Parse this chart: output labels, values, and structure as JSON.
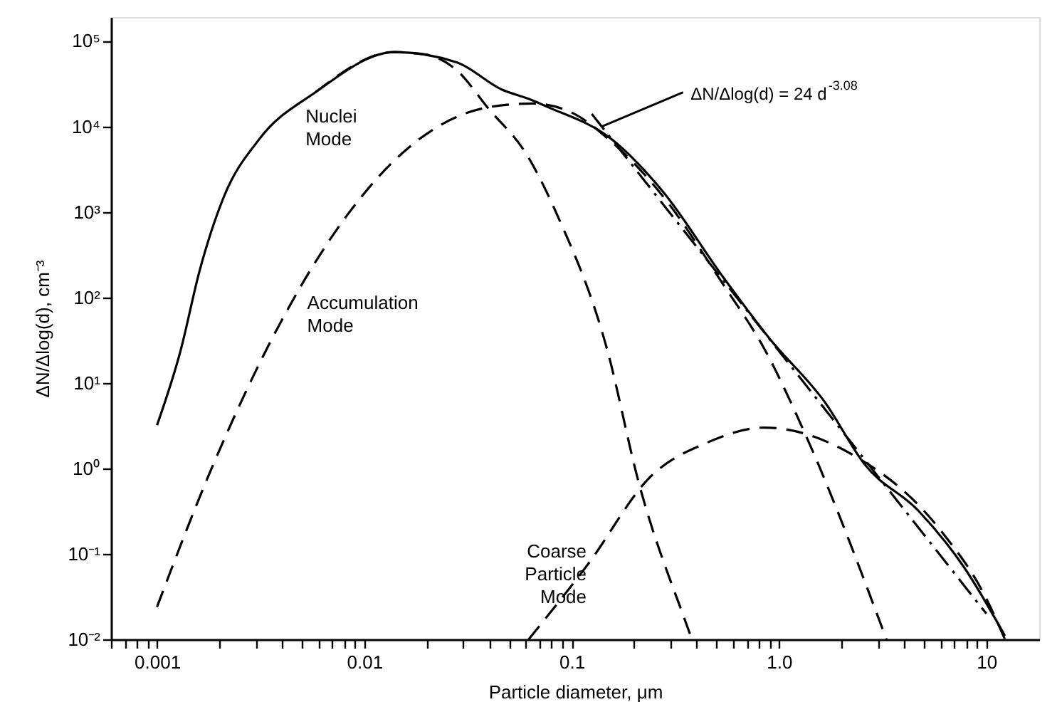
{
  "chart_data": {
    "type": "line",
    "xlabel": "Particle diameter, μm",
    "ylabel": "ΔN/Δlog(d), cm⁻³",
    "log": "xy",
    "grid": false,
    "xlim": [
      0.0006,
      18
    ],
    "ylim": [
      0.01,
      190000
    ],
    "xticks": [
      {
        "value": 0.0006,
        "label": null
      },
      {
        "value": 0.0007,
        "label": null
      },
      {
        "value": 0.0008,
        "label": null
      },
      {
        "value": 0.0009,
        "label": null
      },
      0.001,
      {
        "value": 0.002,
        "label": null
      },
      {
        "value": 0.003,
        "label": null
      },
      {
        "value": 0.004,
        "label": null
      },
      {
        "value": 0.005,
        "label": null
      },
      {
        "value": 0.006,
        "label": null
      },
      {
        "value": 0.007,
        "label": null
      },
      {
        "value": 0.008,
        "label": null
      },
      {
        "value": 0.009,
        "label": null
      },
      0.01,
      {
        "value": 0.02,
        "label": null
      },
      {
        "value": 0.03,
        "label": null
      },
      {
        "value": 0.04,
        "label": null
      },
      {
        "value": 0.05,
        "label": null
      },
      {
        "value": 0.06,
        "label": null
      },
      {
        "value": 0.07,
        "label": null
      },
      {
        "value": 0.08,
        "label": null
      },
      {
        "value": 0.09,
        "label": null
      },
      0.1,
      {
        "value": 0.2,
        "label": null
      },
      {
        "value": 0.3,
        "label": null
      },
      {
        "value": 0.4,
        "label": null
      },
      {
        "value": 0.5,
        "label": null
      },
      {
        "value": 0.6,
        "label": null
      },
      {
        "value": 0.7,
        "label": null
      },
      {
        "value": 0.8,
        "label": null
      },
      {
        "value": 0.9,
        "label": null
      },
      {
        "value": 1,
        "label": "1.0"
      },
      {
        "value": 2,
        "label": null
      },
      {
        "value": 3,
        "label": null
      },
      {
        "value": 4,
        "label": null
      },
      {
        "value": 5,
        "label": null
      },
      {
        "value": 6,
        "label": null
      },
      {
        "value": 7,
        "label": null
      },
      {
        "value": 8,
        "label": null
      },
      {
        "value": 9,
        "label": null
      },
      10
    ],
    "yticks": [
      {
        "value": 0.01,
        "label": "10⁻²"
      },
      {
        "value": 0.1,
        "label": "10⁻¹"
      },
      {
        "value": 1,
        "label": "10⁰"
      },
      {
        "value": 10,
        "label": "10¹"
      },
      {
        "value": 100,
        "label": "10²"
      },
      {
        "value": 1000,
        "label": "10³"
      },
      {
        "value": 10000,
        "label": "10⁴"
      },
      {
        "value": 100000,
        "label": "10⁵"
      }
    ],
    "series": [
      {
        "color": "#000000",
        "line_style": "solid",
        "x": [
          0.001,
          0.0013,
          0.0016,
          0.0021,
          0.0031,
          0.0058,
          0.014,
          0.028,
          0.046,
          0.062,
          0.076,
          0.157,
          0.277,
          0.54,
          0.9,
          1.66,
          2.6,
          4.7,
          7.8,
          12.3
        ],
        "values": [
          3.2,
          24,
          200,
          1500,
          7000,
          25000,
          74000,
          56000,
          27000,
          21000,
          17000,
          7000,
          1700,
          170,
          33,
          6,
          1.1,
          0.32,
          0.07,
          0.011
        ]
      },
      {
        "name": "Nuclei Mode",
        "color": "#000000",
        "line_style": "dashed",
        "x": [
          0.0058,
          0.014,
          0.02,
          0.028,
          0.039,
          0.062,
          0.085,
          0.148,
          0.21,
          0.37,
          0.38
        ],
        "values": [
          25000,
          74000,
          69000,
          45000,
          17000,
          4300,
          930,
          25,
          0.7,
          0.012,
          0.01
        ]
      },
      {
        "name": "Accumulation Mode",
        "color": "#000000",
        "line_style": "dashed",
        "x": [
          0.001,
          0.0018,
          0.0038,
          0.0083,
          0.016,
          0.041,
          0.065,
          0.1,
          0.157,
          0.277,
          0.54,
          0.85,
          1.35,
          3.3
        ],
        "values": [
          0.024,
          0.9,
          43,
          930,
          5400,
          17000,
          18500,
          14500,
          6500,
          1500,
          140,
          25,
          2.4,
          0.01
        ]
      },
      {
        "name": "Coarse Particle Mode",
        "color": "#000000",
        "line_style": "dashed",
        "x": [
          0.062,
          0.12,
          0.24,
          0.45,
          0.85,
          2.2,
          6,
          10,
          12.3
        ],
        "values": [
          0.01,
          0.076,
          0.8,
          2.0,
          3.0,
          1.5,
          0.19,
          0.03,
          0.01
        ]
      },
      {
        "color": "#000000",
        "line_style": "dashdot",
        "x": [
          0.125,
          10
        ],
        "values": [
          14000,
          0.02
        ]
      }
    ],
    "annotations": [
      {
        "text": "ΔN/Δlog(d) = 24 d$^{-3.08}$",
        "x": 0.14,
        "y": 10000
      }
    ]
  }
}
